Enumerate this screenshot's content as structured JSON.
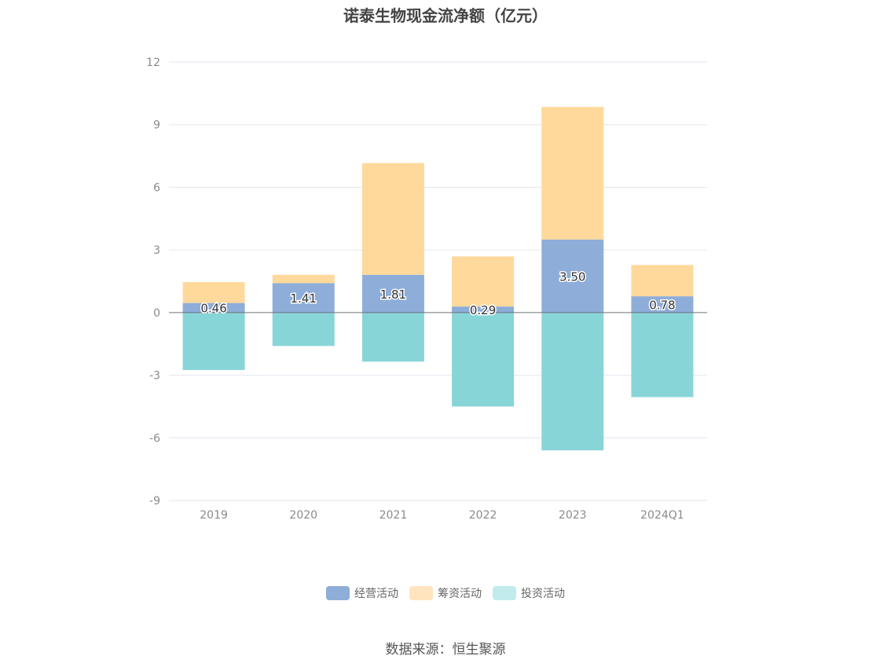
{
  "chart_data": {
    "type": "bar",
    "stacked": true,
    "title": "诺泰生物现金流净额（亿元）",
    "categories": [
      "2019",
      "2020",
      "2021",
      "2022",
      "2023",
      "2024Q1"
    ],
    "series": [
      {
        "name": "经营活动",
        "color": "#8eadd9",
        "values": [
          0.46,
          1.41,
          1.81,
          0.29,
          3.5,
          0.78
        ],
        "labels": [
          "0.46",
          "1.41",
          "1.81",
          "0.29",
          "3.50",
          "0.78"
        ]
      },
      {
        "name": "筹资活动",
        "color": "#ffd99b",
        "values": [
          1.0,
          0.4,
          5.35,
          2.4,
          6.35,
          1.5
        ]
      },
      {
        "name": "投资活动",
        "color": "#88d5d8",
        "values": [
          -2.75,
          -1.6,
          -2.35,
          -4.5,
          -6.6,
          -4.05
        ]
      }
    ],
    "yticks": [
      "12",
      "9",
      "6",
      "3",
      "0",
      "-3",
      "-6",
      "-9"
    ],
    "ylim": [
      -9,
      12
    ],
    "grid": true,
    "legend_position": "bottom"
  },
  "legend_swatch_colors": {
    "operating": "#8eadd9",
    "financing": "#ffe4bf",
    "investing": "#c2ebed"
  },
  "source": "数据来源：恒生聚源"
}
